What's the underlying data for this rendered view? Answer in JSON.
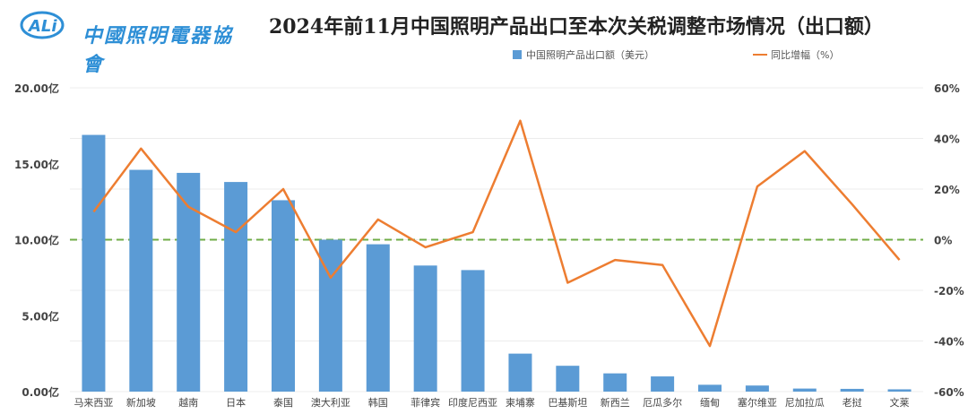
{
  "header": {
    "logo_text": "中國照明電器協會",
    "title": "2024年前11月中国照明产品出口至本次关税调整市场情况（出口额）"
  },
  "chart_data": {
    "type": "bar",
    "title": "2024年前11月中国照明产品出口至本次关税调整市场情况（出口额）",
    "categories": [
      "马来西亚",
      "新加坡",
      "越南",
      "日本",
      "泰国",
      "澳大利亚",
      "韩国",
      "菲律宾",
      "印度尼西亚",
      "柬埔寨",
      "巴基斯坦",
      "新西兰",
      "厄瓜多尔",
      "缅甸",
      "塞尔维亚",
      "尼加拉瓜",
      "老挝",
      "文莱"
    ],
    "series": [
      {
        "name": "中国照明产品出口额（美元）",
        "type": "bar",
        "axis": "left",
        "color": "#5b9bd5",
        "values": [
          16.9,
          14.6,
          14.4,
          13.8,
          12.6,
          10.0,
          9.7,
          8.3,
          8.0,
          2.5,
          1.7,
          1.2,
          1.0,
          0.45,
          0.4,
          0.2,
          0.18,
          0.15
        ]
      },
      {
        "name": "同比增幅（%）",
        "type": "line",
        "axis": "right",
        "color": "#ed7d31",
        "values": [
          11,
          36,
          13,
          3,
          20,
          -15,
          8,
          -3,
          3,
          47,
          -17,
          -8,
          -10,
          -42,
          21,
          35,
          14,
          -8
        ]
      }
    ],
    "left_axis": {
      "ylim": [
        0,
        20
      ],
      "ticks": [
        "0.00亿",
        "5.00亿",
        "10.00亿",
        "15.00亿",
        "20.00亿"
      ]
    },
    "right_axis": {
      "ylim": [
        -60,
        60
      ],
      "ticks": [
        "-60%",
        "-40%",
        "-20%",
        "0%",
        "20%",
        "40%",
        "60%"
      ]
    },
    "zero_line_color": "#70ad47",
    "legend": "top-right"
  }
}
